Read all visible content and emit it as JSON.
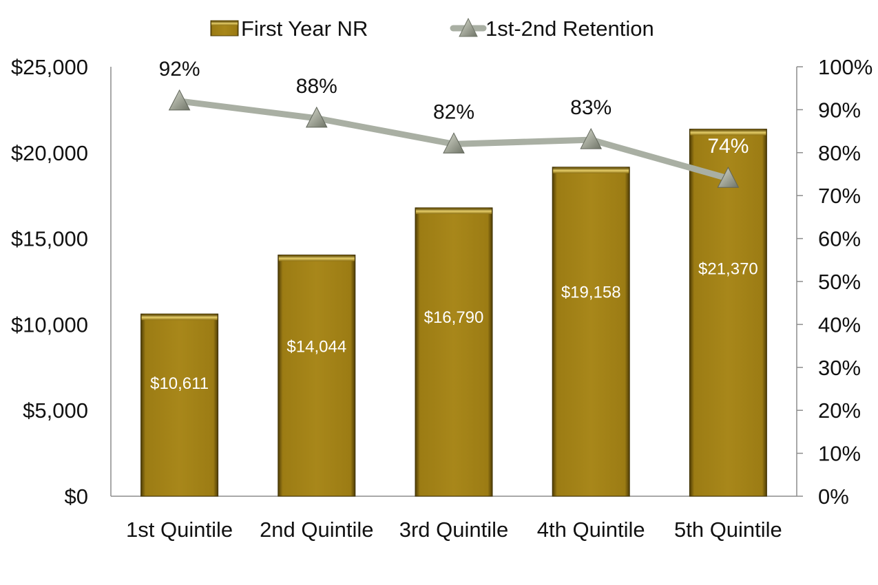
{
  "chart_data": {
    "type": "bar",
    "categories": [
      "1st Quintile",
      "2nd Quintile",
      "3rd Quintile",
      "4th Quintile",
      "5th Quintile"
    ],
    "series": [
      {
        "name": "First Year NR",
        "type": "bar",
        "axis": "left",
        "values": [
          10611,
          14044,
          16790,
          19158,
          21370
        ],
        "labels": [
          "$10,611",
          "$14,044",
          "$16,790",
          "$19,158",
          "$21,370"
        ],
        "color": "#A8871A"
      },
      {
        "name": "1st-2nd Retention",
        "type": "line",
        "axis": "right",
        "values": [
          0.92,
          0.88,
          0.82,
          0.83,
          0.74
        ],
        "labels": [
          "92%",
          "88%",
          "82%",
          "83%",
          "74%"
        ],
        "color": "#A9AFA3"
      }
    ],
    "y_left": {
      "ylim": [
        0,
        25000
      ],
      "ticks": [
        0,
        5000,
        10000,
        15000,
        20000,
        25000
      ],
      "tick_labels": [
        "$0",
        "$5,000",
        "$10,000",
        "$15,000",
        "$20,000",
        "$25,000"
      ]
    },
    "y_right": {
      "ylim": [
        0,
        1
      ],
      "ticks": [
        0,
        0.1,
        0.2,
        0.3,
        0.4,
        0.5,
        0.6,
        0.7,
        0.8,
        0.9,
        1.0
      ],
      "tick_labels": [
        "0%",
        "10%",
        "20%",
        "30%",
        "40%",
        "50%",
        "60%",
        "70%",
        "80%",
        "90%",
        "100%"
      ]
    },
    "legend": {
      "placement": "top-center"
    },
    "grid": false
  }
}
